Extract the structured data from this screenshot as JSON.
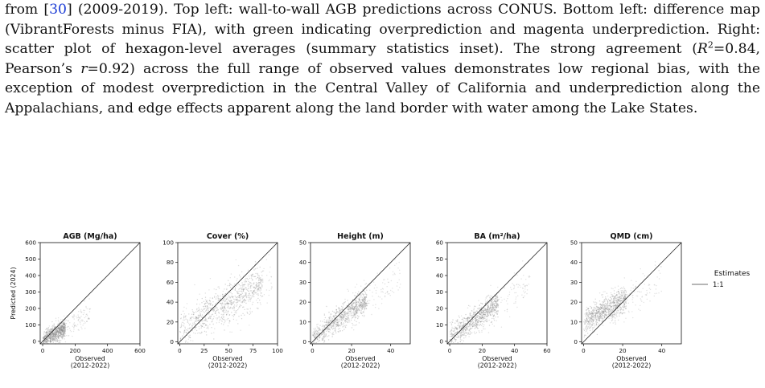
{
  "caption": {
    "line1_a": "from [",
    "citation": "30",
    "line1_b": "] (2009-2019). Top left: wall-to-wall AGB predictions across CONUS. Bottom left: difference map (VibrantForests minus FIA), with green indicating overprediction and magenta underprediction. Right: scatter plot of hexagon-level averages (summary statistics inset). The strong agreement (",
    "r2_symbol": "R",
    "r2_exp": "2",
    "r2_value": "=0.84, Pearson’s ",
    "r_symbol": "r",
    "r_value": "=0.92) across the full range of observed values demonstrates low regional bias, with the exception of modest overprediction in the Central Valley of California and underprediction along the Appalachians, and edge effects apparent along the land border with water among the Lake States."
  },
  "colors": {
    "points": "#8a8a8a",
    "line": "#222222",
    "citation": "#1f3fd6"
  },
  "chart_data": [
    {
      "type": "scatter",
      "title": "AGB (Mg/ha)",
      "xlabel": "Observed\n(2012-2022)",
      "ylabel": "Predicted (2024)",
      "xlim": [
        -15,
        600
      ],
      "ylim": [
        -15,
        600
      ],
      "xticks": [
        0,
        200,
        400,
        600
      ],
      "yticks": [
        0,
        100,
        200,
        300,
        400,
        500,
        600
      ],
      "cloud": {
        "x_range": [
          0,
          300
        ],
        "y_center_at_0": 5,
        "slope": 0.55,
        "spread": 25,
        "dense_max_x": 140
      }
    },
    {
      "type": "scatter",
      "title": "Cover (%)",
      "xlabel": "Observed\n(2012-2022)",
      "ylabel": "",
      "xlim": [
        -2,
        100
      ],
      "ylim": [
        -2,
        100
      ],
      "xticks": [
        0,
        25,
        50,
        75,
        100
      ],
      "yticks": [
        0,
        20,
        40,
        60,
        80,
        100
      ],
      "cloud": {
        "x_range": [
          0,
          95
        ],
        "y_center_at_0": 12,
        "slope": 0.55,
        "spread": 9,
        "dense_max_x": 85
      }
    },
    {
      "type": "scatter",
      "title": "Height (m)",
      "xlabel": "Observed\n(2012-2022)",
      "ylabel": "",
      "xlim": [
        -1,
        50
      ],
      "ylim": [
        -1,
        50
      ],
      "xticks": [
        0,
        20,
        40
      ],
      "yticks": [
        0,
        10,
        20,
        30,
        40,
        50
      ],
      "cloud": {
        "x_range": [
          0,
          45
        ],
        "y_center_at_0": 2,
        "slope": 0.7,
        "spread": 3,
        "dense_max_x": 28
      }
    },
    {
      "type": "scatter",
      "title": "BA (m²/ha)",
      "xlabel": "Observed\n(2012-2022)",
      "ylabel": "",
      "xlim": [
        -1.5,
        60
      ],
      "ylim": [
        -1.5,
        60
      ],
      "xticks": [
        0,
        20,
        40,
        60
      ],
      "yticks": [
        0,
        10,
        20,
        30,
        40,
        50,
        60
      ],
      "cloud": {
        "x_range": [
          0,
          50
        ],
        "y_center_at_0": 2,
        "slope": 0.7,
        "spread": 3.5,
        "dense_max_x": 30
      }
    },
    {
      "type": "scatter",
      "title": "QMD (cm)",
      "xlabel": "Observed\n(2012-2022)",
      "ylabel": "",
      "xlim": [
        -1,
        50
      ],
      "ylim": [
        -1,
        50
      ],
      "xticks": [
        0,
        20,
        40
      ],
      "yticks": [
        0,
        10,
        20,
        30,
        40,
        50
      ],
      "cloud": {
        "x_range": [
          0,
          40
        ],
        "y_center_at_0": 10,
        "slope": 0.55,
        "spread": 3,
        "dense_max_x": 22
      }
    }
  ],
  "legend": {
    "title": "Estimates",
    "items": [
      "1:1"
    ]
  }
}
